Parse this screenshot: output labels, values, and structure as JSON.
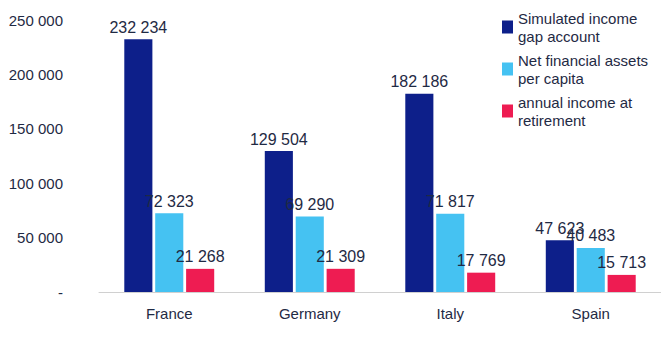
{
  "chart_data": {
    "type": "bar",
    "categories": [
      "France",
      "Germany",
      "Italy",
      "Spain"
    ],
    "series": [
      {
        "name": "Simulated income gap account",
        "color": "#0d1f8a",
        "values": [
          232234,
          129504,
          182186,
          47623
        ],
        "value_labels": [
          "232 234",
          "129 504",
          "182 186",
          "47 623"
        ]
      },
      {
        "name": "Net financial assets per capita",
        "color": "#45c2f2",
        "values": [
          72323,
          69290,
          71817,
          40483
        ],
        "value_labels": [
          "72 323",
          "69 290",
          "71 817",
          "40 483"
        ]
      },
      {
        "name": "annual income at retirement",
        "color": "#ee1c52",
        "values": [
          21268,
          21309,
          17769,
          15713
        ],
        "value_labels": [
          "21 268",
          "21 309",
          "17 769",
          "15 713"
        ]
      }
    ],
    "ylim": [
      0,
      250000
    ],
    "yticks": [
      {
        "value": 0,
        "label": "-"
      },
      {
        "value": 50000,
        "label": "50 000"
      },
      {
        "value": 100000,
        "label": "100 000"
      },
      {
        "value": 150000,
        "label": "150 000"
      },
      {
        "value": 200000,
        "label": "200 000"
      },
      {
        "value": 250000,
        "label": "250 000"
      }
    ],
    "grid": false,
    "legend": "top-right",
    "data_labels": true
  }
}
